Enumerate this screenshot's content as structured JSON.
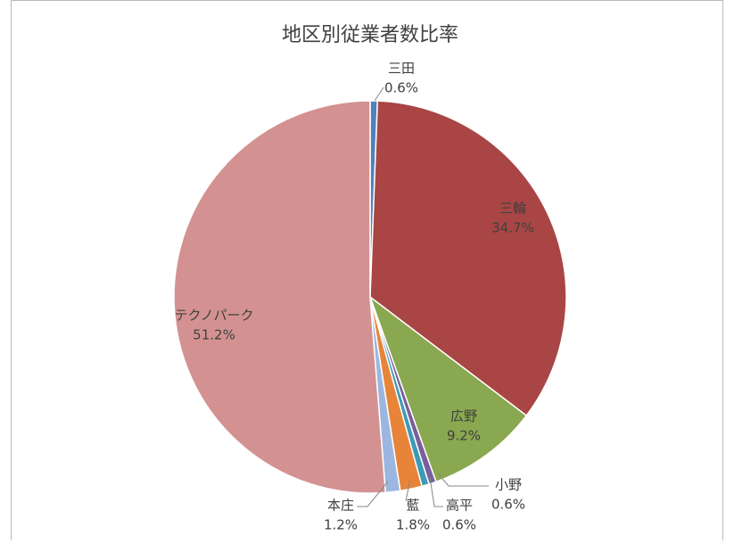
{
  "chart_data": {
    "type": "pie",
    "title": "地区別従業者数比率",
    "categories": [
      "三田",
      "三輪",
      "広野",
      "小野",
      "高平",
      "藍",
      "本庄",
      "テクノパーク"
    ],
    "values": [
      0.6,
      34.7,
      9.2,
      0.6,
      0.6,
      1.8,
      1.2,
      51.2
    ],
    "value_labels": [
      "0.6%",
      "34.7%",
      "9.2%",
      "0.6%",
      "0.6%",
      "1.8%",
      "1.2%",
      "51.2%"
    ],
    "colors": [
      "#4f81bd",
      "#a94545",
      "#8aa84f",
      "#7a5e9c",
      "#3c9bb5",
      "#e8843a",
      "#9bb7e0",
      "#d39291"
    ]
  }
}
